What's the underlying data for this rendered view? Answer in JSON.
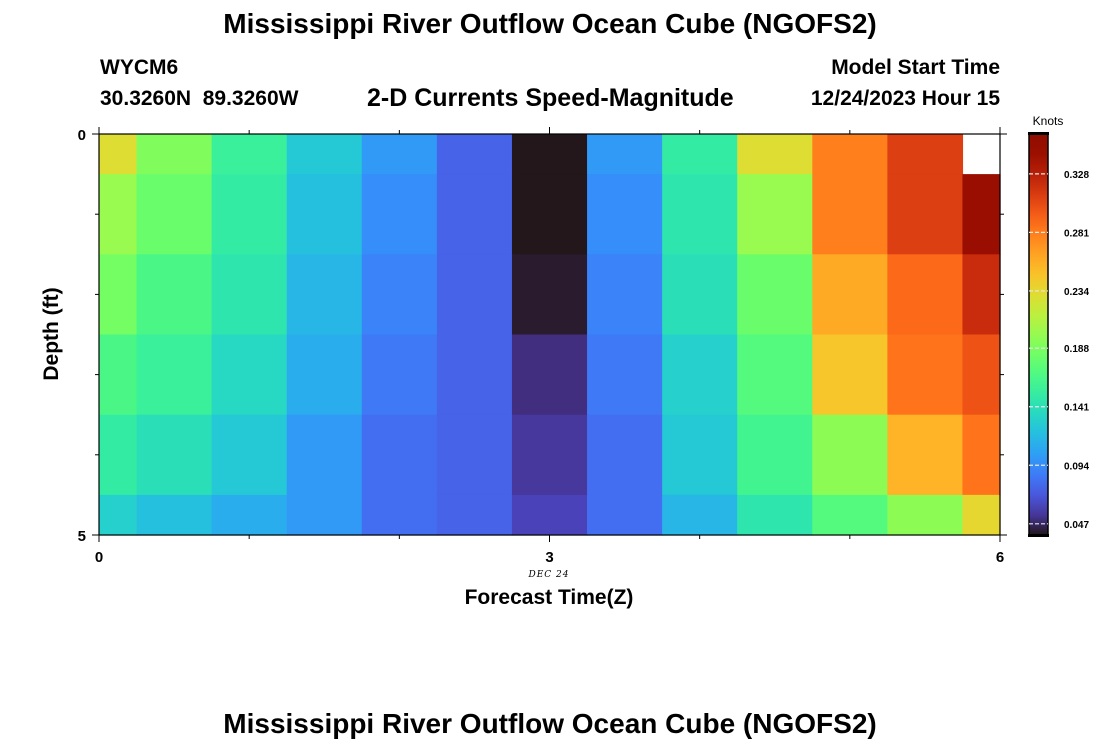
{
  "header": {
    "title": "Mississippi River Outflow Ocean Cube (NGOFS2)",
    "station": "WYCM6",
    "coords": "30.3260N  89.3260W",
    "subtitle": "2-D Currents Speed-Magnitude",
    "model_start_label": "Model Start Time",
    "model_start_value": "12/24/2023 Hour 15"
  },
  "footer": {
    "title": "Mississippi River Outflow Ocean Cube (NGOFS2)"
  },
  "chart_data": {
    "type": "heatmap",
    "xlabel": "Forecast Time(Z)",
    "ylabel": "Depth (ft)",
    "x_date_label": "DEC 24",
    "xlim": [
      0,
      6
    ],
    "ylim": [
      0,
      5
    ],
    "x_ticks": [
      "0",
      "3",
      "6"
    ],
    "y_ticks": [
      "0",
      "5"
    ],
    "x_edges": [
      0,
      0.25,
      0.75,
      1.25,
      1.75,
      2.25,
      2.75,
      3.25,
      3.75,
      4.25,
      4.75,
      5.25,
      5.75,
      6
    ],
    "y_edges": [
      0,
      0.5,
      1.5,
      2.5,
      3.5,
      4.5,
      5
    ],
    "rows": [
      [
        0.23,
        0.19,
        0.155,
        0.125,
        0.1,
        0.075,
        0.01,
        0.1,
        0.15,
        0.23,
        0.28,
        0.31,
        null
      ],
      [
        0.2,
        0.18,
        0.15,
        0.12,
        0.095,
        0.075,
        0.025,
        0.095,
        0.145,
        0.2,
        0.28,
        0.31,
        0.345
      ],
      [
        0.185,
        0.165,
        0.145,
        0.115,
        0.09,
        0.075,
        0.04,
        0.09,
        0.14,
        0.18,
        0.26,
        0.29,
        0.32
      ],
      [
        0.165,
        0.155,
        0.135,
        0.11,
        0.085,
        0.075,
        0.05,
        0.085,
        0.13,
        0.17,
        0.245,
        0.285,
        0.3
      ],
      [
        0.15,
        0.14,
        0.125,
        0.1,
        0.08,
        0.075,
        0.055,
        0.08,
        0.125,
        0.16,
        0.195,
        0.255,
        0.285
      ],
      [
        0.13,
        0.12,
        0.11,
        0.1,
        0.08,
        0.075,
        0.06,
        0.08,
        0.115,
        0.145,
        0.17,
        0.195,
        0.235
      ]
    ],
    "colorbar": {
      "title": "Knots",
      "ticks": [
        "0.047",
        "0.094",
        "0.141",
        "0.188",
        "0.234",
        "0.281",
        "0.328"
      ],
      "range": [
        0.038,
        0.36
      ],
      "colormap": "turbo"
    }
  }
}
